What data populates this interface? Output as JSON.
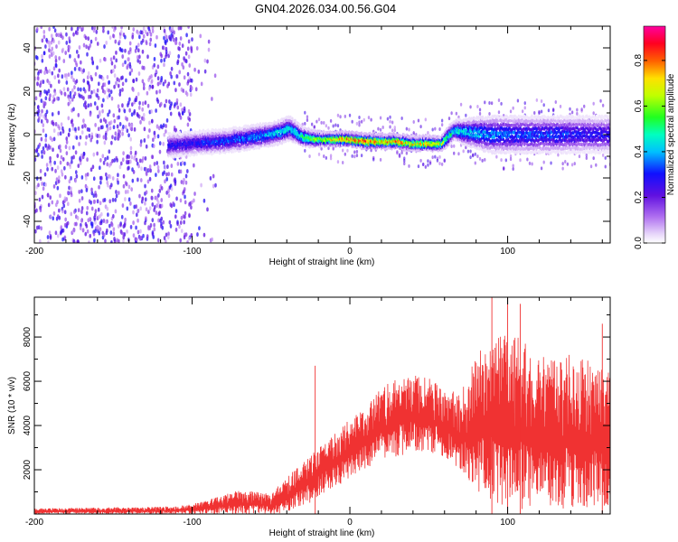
{
  "title": "GN04.2026.034.00.56.G04",
  "colors": {
    "snr_line": "#f03232",
    "axes": "#000000"
  },
  "chart_data": [
    {
      "type": "heatmap",
      "xlabel": "Height of straight line (km)",
      "ylabel": "Frequency (Hz)",
      "xlim": [
        -200,
        165
      ],
      "ylim": [
        -50,
        50
      ],
      "xticks": [
        -200,
        -100,
        0,
        100
      ],
      "yticks": [
        -40,
        -20,
        0,
        20,
        40
      ],
      "colorbar": {
        "label": "Normalized spectral amplitude",
        "range": [
          0,
          0.95
        ],
        "ticks": [
          0.0,
          0.2,
          0.4,
          0.6,
          0.8
        ],
        "tick_labels": [
          "0.0",
          "0.2",
          "0.4",
          "0.6",
          "0.8"
        ],
        "colormap": "rainbow (white-violet to magenta)"
      },
      "ridge": {
        "x": [
          -115,
          -100,
          -80,
          -60,
          -45,
          -38,
          -30,
          -20,
          -10,
          0,
          10,
          20,
          30,
          40,
          50,
          58,
          62,
          66,
          75,
          90,
          110,
          130,
          150,
          165
        ],
        "freq": [
          -5,
          -4,
          -3,
          -1,
          1,
          3,
          -1,
          -2,
          -2,
          -2,
          -3,
          -3,
          -3,
          -4,
          -4,
          -4,
          -1,
          2,
          1,
          0,
          0,
          0,
          0,
          0
        ],
        "amplitude": [
          0.3,
          0.3,
          0.35,
          0.4,
          0.45,
          0.45,
          0.55,
          0.65,
          0.75,
          0.85,
          0.85,
          0.8,
          0.8,
          0.75,
          0.75,
          0.7,
          0.55,
          0.5,
          0.45,
          0.4,
          0.35,
          0.35,
          0.3,
          0.3
        ],
        "halfwidth": [
          5,
          5,
          5,
          5,
          5,
          5,
          4,
          3,
          3,
          3,
          3,
          3,
          3,
          3,
          3,
          3,
          4,
          4,
          6,
          8,
          8,
          8,
          8,
          8
        ]
      },
      "noise_region": {
        "xrange": [
          -200,
          -100
        ],
        "freq_range": [
          -50,
          50
        ],
        "amplitude": 0.3
      }
    },
    {
      "type": "line",
      "xlabel": "Height of straight line (km)",
      "ylabel": "SNR (10 * v/v)",
      "xlim": [
        -200,
        165
      ],
      "ylim": [
        0,
        9800
      ],
      "xticks": [
        -200,
        -100,
        0,
        100
      ],
      "yticks": [
        2000,
        4000,
        6000,
        8000
      ],
      "series": [
        {
          "x": [
            -200,
            -150,
            -110,
            -100,
            -90,
            -80,
            -70,
            -60,
            -50,
            -45,
            -40,
            -35,
            -30,
            -25,
            -20,
            -10,
            0,
            10,
            20,
            30,
            40,
            50,
            60,
            70,
            75,
            80,
            90,
            100,
            110,
            120,
            130,
            140,
            150,
            160,
            165
          ],
          "low": [
            0,
            0,
            0,
            0,
            0,
            0,
            0,
            0,
            0,
            0,
            100,
            200,
            300,
            500,
            800,
            1200,
            1600,
            2000,
            2400,
            2600,
            2800,
            2800,
            2600,
            2000,
            1600,
            1000,
            500,
            300,
            200,
            200,
            200,
            200,
            200,
            300,
            300
          ],
          "high": [
            250,
            300,
            350,
            450,
            650,
            850,
            1100,
            1000,
            900,
            1300,
            1700,
            2000,
            2400,
            2700,
            3100,
            3600,
            4300,
            4800,
            5700,
            6200,
            6400,
            6200,
            5600,
            5500,
            6200,
            7200,
            8000,
            8300,
            7800,
            7300,
            7000,
            7300,
            7000,
            6500,
            6600
          ]
        }
      ],
      "spikes": [
        {
          "x": -22,
          "value": 6700
        },
        {
          "x": 90,
          "value": 9800
        },
        {
          "x": 100,
          "value": 9800
        },
        {
          "x": 108,
          "value": 9500
        },
        {
          "x": 160,
          "value": 8600
        }
      ]
    }
  ]
}
